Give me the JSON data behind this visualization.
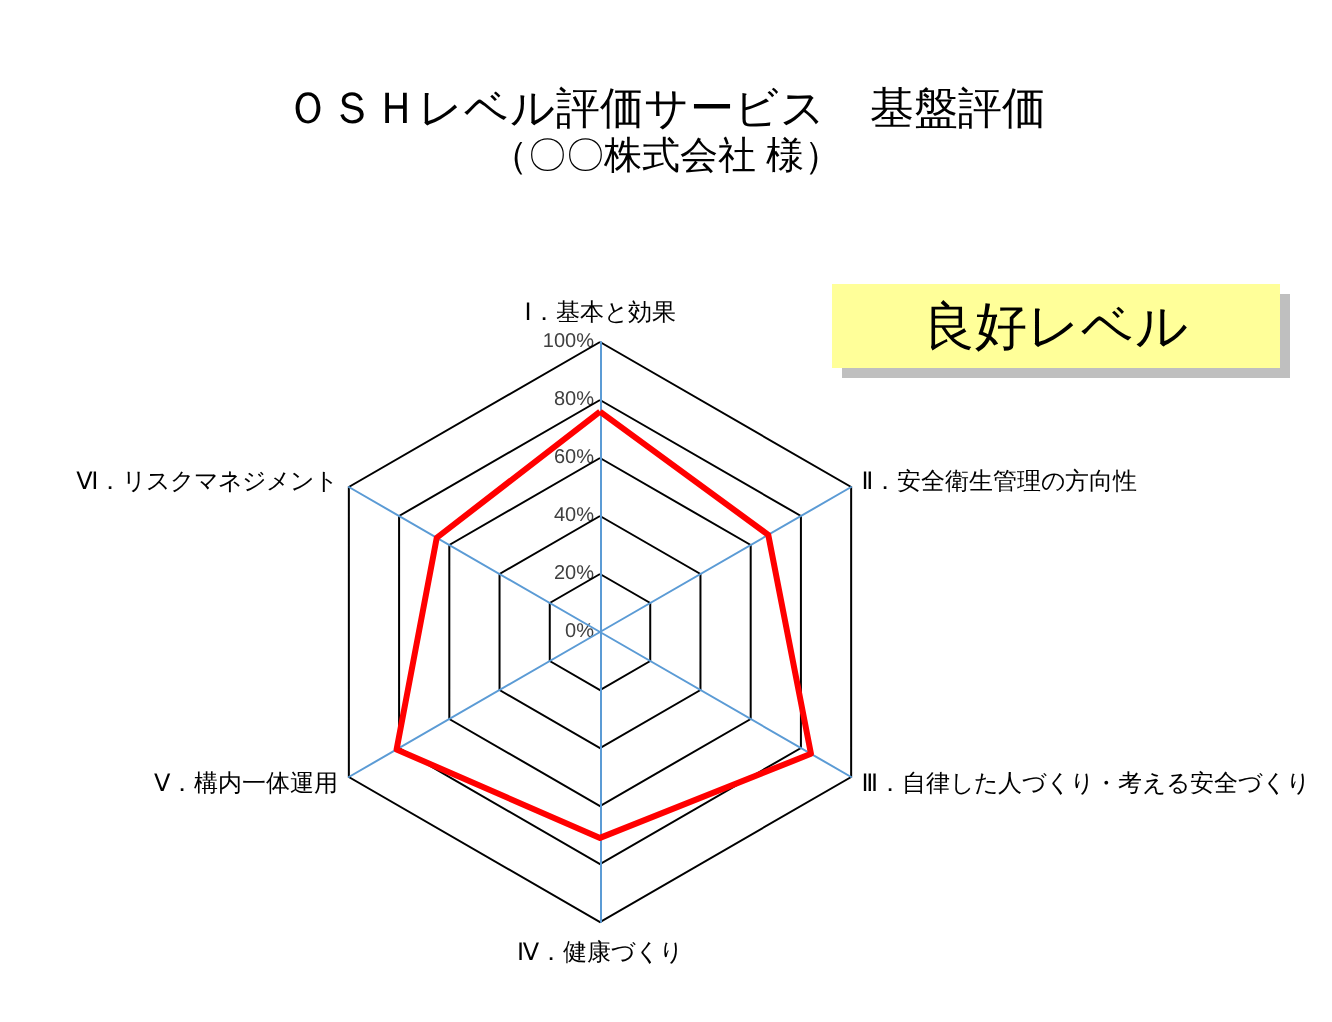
{
  "chart_data": {
    "type": "radar",
    "title": "ＯＳＨレベル評価サービス　基盤評価",
    "subtitle": "（〇〇株式会社 様）",
    "annotations": [
      "良好レベル"
    ],
    "categories": [
      "Ⅰ．基本と効果",
      "Ⅱ．安全衛生管理の方向性",
      "Ⅲ．自律した人づくり・考える安全づくり",
      "Ⅳ．健康づくり",
      "Ⅴ．構内一体運用",
      "Ⅵ．リスクマネジメント"
    ],
    "series": [
      {
        "color": "#ff0000",
        "values": [
          76,
          67,
          84,
          71,
          81,
          65
        ]
      }
    ],
    "ylim": [
      0,
      100
    ],
    "yticks": [
      {
        "value": 0,
        "label": "0%"
      },
      {
        "value": 20,
        "label": "20%"
      },
      {
        "value": 40,
        "label": "40%"
      },
      {
        "value": 60,
        "label": "60%"
      },
      {
        "value": 80,
        "label": "80%"
      },
      {
        "value": 100,
        "label": "100%"
      }
    ],
    "grid": true,
    "marker": "none",
    "line_style": "solid"
  }
}
